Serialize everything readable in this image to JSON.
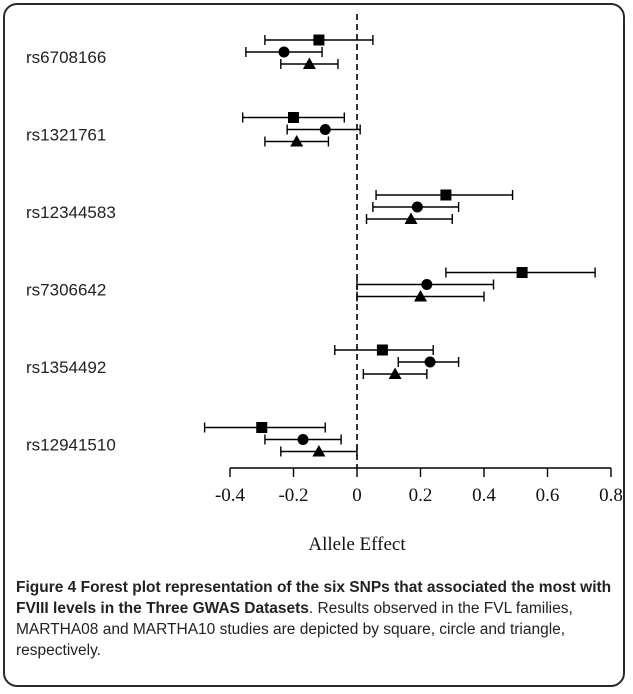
{
  "chart_data": {
    "type": "forest",
    "xlabel": "Allele Effect",
    "xlim": [
      -0.5,
      0.8
    ],
    "xticks": [
      "-0.4",
      "-0.2",
      "0",
      "0.2",
      "0.4",
      "0.6",
      "0.8"
    ],
    "xtick_values": [
      -0.4,
      -0.2,
      0,
      0.2,
      0.4,
      0.6,
      0.8
    ],
    "reference_line": 0,
    "marker_series": [
      "square",
      "circle",
      "triangle"
    ],
    "rows": [
      {
        "label": "rs6708166",
        "estimates": [
          {
            "marker": "square",
            "value": -0.12,
            "low": -0.29,
            "high": 0.05
          },
          {
            "marker": "circle",
            "value": -0.23,
            "low": -0.35,
            "high": -0.11
          },
          {
            "marker": "triangle",
            "value": -0.15,
            "low": -0.24,
            "high": -0.06
          }
        ]
      },
      {
        "label": "rs1321761",
        "estimates": [
          {
            "marker": "square",
            "value": -0.2,
            "low": -0.36,
            "high": -0.04
          },
          {
            "marker": "circle",
            "value": -0.1,
            "low": -0.22,
            "high": 0.01
          },
          {
            "marker": "triangle",
            "value": -0.19,
            "low": -0.29,
            "high": -0.09
          }
        ]
      },
      {
        "label": "rs12344583",
        "estimates": [
          {
            "marker": "square",
            "value": 0.28,
            "low": 0.06,
            "high": 0.49
          },
          {
            "marker": "circle",
            "value": 0.19,
            "low": 0.05,
            "high": 0.32
          },
          {
            "marker": "triangle",
            "value": 0.17,
            "low": 0.03,
            "high": 0.3
          }
        ]
      },
      {
        "label": "rs7306642",
        "estimates": [
          {
            "marker": "square",
            "value": 0.52,
            "low": 0.28,
            "high": 0.75
          },
          {
            "marker": "circle",
            "value": 0.22,
            "low": 0.0,
            "high": 0.43
          },
          {
            "marker": "triangle",
            "value": 0.2,
            "low": 0.0,
            "high": 0.4
          }
        ]
      },
      {
        "label": "rs1354492",
        "estimates": [
          {
            "marker": "square",
            "value": 0.08,
            "low": -0.07,
            "high": 0.24
          },
          {
            "marker": "circle",
            "value": 0.23,
            "low": 0.13,
            "high": 0.32
          },
          {
            "marker": "triangle",
            "value": 0.12,
            "low": 0.02,
            "high": 0.22
          }
        ]
      },
      {
        "label": "rs12941510",
        "estimates": [
          {
            "marker": "square",
            "value": -0.3,
            "low": -0.48,
            "high": -0.1
          },
          {
            "marker": "circle",
            "value": -0.17,
            "low": -0.29,
            "high": -0.05
          },
          {
            "marker": "triangle",
            "value": -0.12,
            "low": -0.24,
            "high": 0.0
          }
        ]
      }
    ]
  },
  "caption": {
    "title": "Figure 4 Forest plot representation of the six SNPs that associated the most with FVIII levels in the Three GWAS Datasets",
    "body": ". Results observed in the FVL families, MARTHA08 and MARTHA10 studies are depicted by square, circle and triangle, respectively."
  },
  "colors": {
    "ink": "#000000",
    "text": "#222222",
    "border": "#2a2a2a"
  }
}
